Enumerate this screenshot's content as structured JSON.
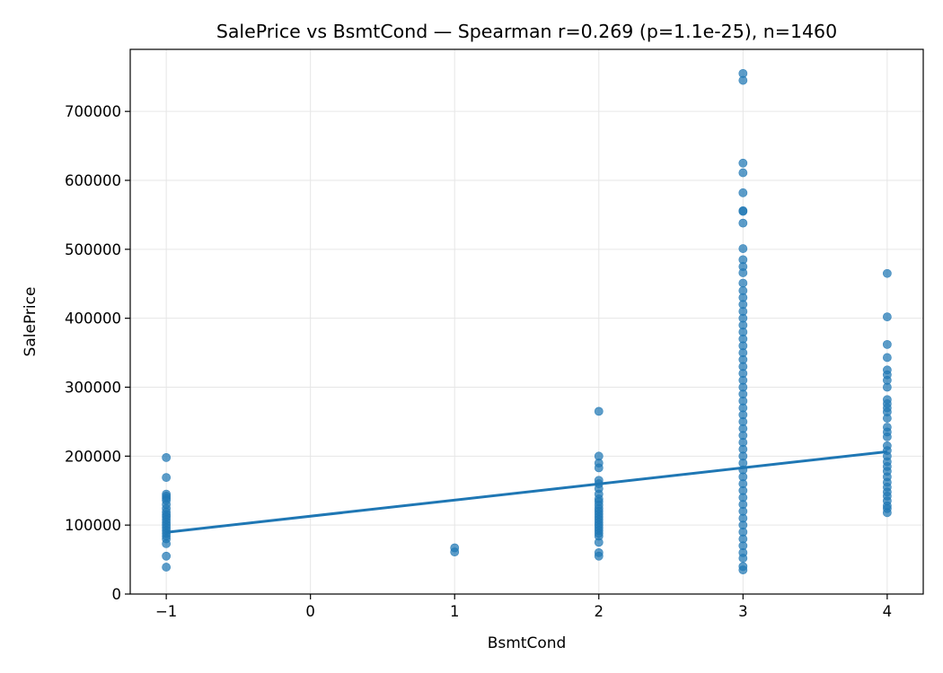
{
  "chart_data": {
    "type": "scatter",
    "title": "SalePrice vs BsmtCond — Spearman r=0.269 (p=1.1e-25), n=1460",
    "xlabel": "BsmtCond",
    "ylabel": "SalePrice",
    "xlim": [
      -1.25,
      4.25
    ],
    "ylim": [
      0,
      790000
    ],
    "x_ticks": [
      -1,
      0,
      1,
      2,
      3,
      4
    ],
    "x_tick_labels": [
      "−1",
      "0",
      "1",
      "2",
      "3",
      "4"
    ],
    "y_ticks": [
      0,
      100000,
      200000,
      300000,
      400000,
      500000,
      600000,
      700000
    ],
    "y_tick_labels": [
      "0",
      "100000",
      "200000",
      "300000",
      "400000",
      "500000",
      "600000",
      "700000"
    ],
    "grid": true,
    "colors": {
      "points": "#1f77b4",
      "fit": "#1f77b4",
      "grid": "#e6e6e6",
      "axes": "#000000"
    },
    "points": [
      {
        "x": -1,
        "y": 198000
      },
      {
        "x": -1,
        "y": 169000
      },
      {
        "x": -1,
        "y": 145000
      },
      {
        "x": -1,
        "y": 142000
      },
      {
        "x": -1,
        "y": 139000
      },
      {
        "x": -1,
        "y": 136000
      },
      {
        "x": -1,
        "y": 130000
      },
      {
        "x": -1,
        "y": 124000
      },
      {
        "x": -1,
        "y": 119000
      },
      {
        "x": -1,
        "y": 115000
      },
      {
        "x": -1,
        "y": 112000
      },
      {
        "x": -1,
        "y": 108000
      },
      {
        "x": -1,
        "y": 104000
      },
      {
        "x": -1,
        "y": 100000
      },
      {
        "x": -1,
        "y": 96000
      },
      {
        "x": -1,
        "y": 92000
      },
      {
        "x": -1,
        "y": 88000
      },
      {
        "x": -1,
        "y": 84000
      },
      {
        "x": -1,
        "y": 80000
      },
      {
        "x": -1,
        "y": 73000
      },
      {
        "x": -1,
        "y": 55000
      },
      {
        "x": -1,
        "y": 39000
      },
      {
        "x": 1,
        "y": 67000
      },
      {
        "x": 1,
        "y": 61000
      },
      {
        "x": 2,
        "y": 265000
      },
      {
        "x": 2,
        "y": 200000
      },
      {
        "x": 2,
        "y": 190000
      },
      {
        "x": 2,
        "y": 183000
      },
      {
        "x": 2,
        "y": 165000
      },
      {
        "x": 2,
        "y": 160000
      },
      {
        "x": 2,
        "y": 153000
      },
      {
        "x": 2,
        "y": 145000
      },
      {
        "x": 2,
        "y": 138000
      },
      {
        "x": 2,
        "y": 134000
      },
      {
        "x": 2,
        "y": 129000
      },
      {
        "x": 2,
        "y": 124000
      },
      {
        "x": 2,
        "y": 120000
      },
      {
        "x": 2,
        "y": 116000
      },
      {
        "x": 2,
        "y": 112000
      },
      {
        "x": 2,
        "y": 108000
      },
      {
        "x": 2,
        "y": 104000
      },
      {
        "x": 2,
        "y": 100000
      },
      {
        "x": 2,
        "y": 96000
      },
      {
        "x": 2,
        "y": 92000
      },
      {
        "x": 2,
        "y": 88000
      },
      {
        "x": 2,
        "y": 84000
      },
      {
        "x": 2,
        "y": 75000
      },
      {
        "x": 2,
        "y": 60000
      },
      {
        "x": 2,
        "y": 55000
      },
      {
        "x": 3,
        "y": 755000
      },
      {
        "x": 3,
        "y": 745000
      },
      {
        "x": 3,
        "y": 625000
      },
      {
        "x": 3,
        "y": 611000
      },
      {
        "x": 3,
        "y": 582000
      },
      {
        "x": 3,
        "y": 556000
      },
      {
        "x": 3,
        "y": 555000
      },
      {
        "x": 3,
        "y": 538000
      },
      {
        "x": 3,
        "y": 501000
      },
      {
        "x": 3,
        "y": 485000
      },
      {
        "x": 3,
        "y": 475000
      },
      {
        "x": 3,
        "y": 466000
      },
      {
        "x": 3,
        "y": 451000
      },
      {
        "x": 3,
        "y": 440000
      },
      {
        "x": 3,
        "y": 430000
      },
      {
        "x": 3,
        "y": 420000
      },
      {
        "x": 3,
        "y": 410000
      },
      {
        "x": 3,
        "y": 400000
      },
      {
        "x": 3,
        "y": 390000
      },
      {
        "x": 3,
        "y": 380000
      },
      {
        "x": 3,
        "y": 370000
      },
      {
        "x": 3,
        "y": 360000
      },
      {
        "x": 3,
        "y": 350000
      },
      {
        "x": 3,
        "y": 340000
      },
      {
        "x": 3,
        "y": 330000
      },
      {
        "x": 3,
        "y": 320000
      },
      {
        "x": 3,
        "y": 310000
      },
      {
        "x": 3,
        "y": 300000
      },
      {
        "x": 3,
        "y": 290000
      },
      {
        "x": 3,
        "y": 280000
      },
      {
        "x": 3,
        "y": 270000
      },
      {
        "x": 3,
        "y": 260000
      },
      {
        "x": 3,
        "y": 250000
      },
      {
        "x": 3,
        "y": 240000
      },
      {
        "x": 3,
        "y": 230000
      },
      {
        "x": 3,
        "y": 220000
      },
      {
        "x": 3,
        "y": 210000
      },
      {
        "x": 3,
        "y": 200000
      },
      {
        "x": 3,
        "y": 190000
      },
      {
        "x": 3,
        "y": 180000
      },
      {
        "x": 3,
        "y": 170000
      },
      {
        "x": 3,
        "y": 160000
      },
      {
        "x": 3,
        "y": 150000
      },
      {
        "x": 3,
        "y": 140000
      },
      {
        "x": 3,
        "y": 130000
      },
      {
        "x": 3,
        "y": 120000
      },
      {
        "x": 3,
        "y": 110000
      },
      {
        "x": 3,
        "y": 100000
      },
      {
        "x": 3,
        "y": 90000
      },
      {
        "x": 3,
        "y": 80000
      },
      {
        "x": 3,
        "y": 70000
      },
      {
        "x": 3,
        "y": 60000
      },
      {
        "x": 3,
        "y": 52000
      },
      {
        "x": 3,
        "y": 40000
      },
      {
        "x": 3,
        "y": 35000
      },
      {
        "x": 4,
        "y": 465000
      },
      {
        "x": 4,
        "y": 402000
      },
      {
        "x": 4,
        "y": 362000
      },
      {
        "x": 4,
        "y": 343000
      },
      {
        "x": 4,
        "y": 325000
      },
      {
        "x": 4,
        "y": 318000
      },
      {
        "x": 4,
        "y": 310000
      },
      {
        "x": 4,
        "y": 300000
      },
      {
        "x": 4,
        "y": 282000
      },
      {
        "x": 4,
        "y": 276000
      },
      {
        "x": 4,
        "y": 270000
      },
      {
        "x": 4,
        "y": 264000
      },
      {
        "x": 4,
        "y": 255000
      },
      {
        "x": 4,
        "y": 242000
      },
      {
        "x": 4,
        "y": 235000
      },
      {
        "x": 4,
        "y": 228000
      },
      {
        "x": 4,
        "y": 215000
      },
      {
        "x": 4,
        "y": 208000
      },
      {
        "x": 4,
        "y": 200000
      },
      {
        "x": 4,
        "y": 192000
      },
      {
        "x": 4,
        "y": 185000
      },
      {
        "x": 4,
        "y": 178000
      },
      {
        "x": 4,
        "y": 170000
      },
      {
        "x": 4,
        "y": 162000
      },
      {
        "x": 4,
        "y": 155000
      },
      {
        "x": 4,
        "y": 148000
      },
      {
        "x": 4,
        "y": 142000
      },
      {
        "x": 4,
        "y": 135000
      },
      {
        "x": 4,
        "y": 128000
      },
      {
        "x": 4,
        "y": 124000
      },
      {
        "x": 4,
        "y": 118000
      }
    ],
    "fit_line": [
      {
        "x": -1,
        "y": 89500
      },
      {
        "x": 4,
        "y": 206500
      }
    ]
  }
}
